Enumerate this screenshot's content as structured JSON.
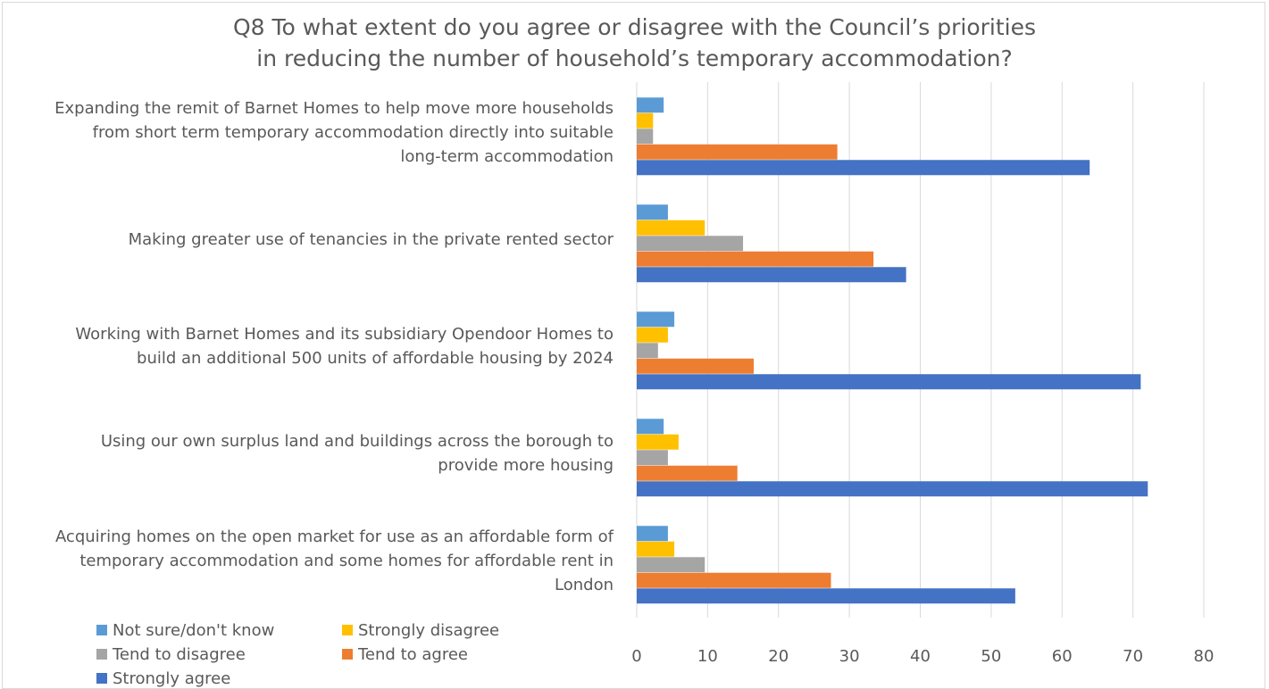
{
  "chart_data": {
    "type": "bar",
    "orientation": "horizontal",
    "title": "Q8 To what extent do you agree or disagree with the Council’s priorities in reducing the number of household’s temporary accommodation?",
    "title_lines": [
      "Q8 To what extent do you agree or disagree with the Council’s priorities",
      "in reducing the number of household’s temporary accommodation?"
    ],
    "categories": [
      [
        "Expanding the remit of Barnet Homes to help move more households",
        "from short term temporary accommodation directly into suitable",
        "long-term accommodation"
      ],
      [
        "Making greater use of tenancies in the private rented sector"
      ],
      [
        "Working with Barnet Homes and its subsidiary Opendoor Homes to",
        "build an additional 500 units of affordable housing by 2024"
      ],
      [
        "Using our own surplus land and buildings across the borough to",
        "provide more housing"
      ],
      [
        "Acquiring homes on the open market for use as an affordable form of",
        "temporary accommodation and some homes for affordable rent in",
        "London"
      ]
    ],
    "series": [
      {
        "name": "Not sure/don't know",
        "color": "#5b9bd5",
        "values": [
          3.8,
          4.4,
          5.3,
          3.8,
          4.4
        ]
      },
      {
        "name": "Strongly disagree",
        "color": "#ffc000",
        "values": [
          2.3,
          9.6,
          4.4,
          5.9,
          5.3
        ]
      },
      {
        "name": "Tend to disagree",
        "color": "#a5a5a5",
        "values": [
          2.3,
          15.0,
          3.0,
          4.4,
          9.6
        ]
      },
      {
        "name": "Tend to agree",
        "color": "#ed7d31",
        "values": [
          28.3,
          33.4,
          16.5,
          14.2,
          27.4
        ]
      },
      {
        "name": "Strongly agree",
        "color": "#4472c4",
        "values": [
          63.9,
          38.0,
          71.1,
          72.1,
          53.4
        ]
      }
    ],
    "xlim": [
      0,
      80
    ],
    "xticks": [
      "0",
      "10",
      "20",
      "30",
      "40",
      "50",
      "60",
      "70",
      "80"
    ],
    "grid": "vertical",
    "legend_position": "bottom-left"
  }
}
